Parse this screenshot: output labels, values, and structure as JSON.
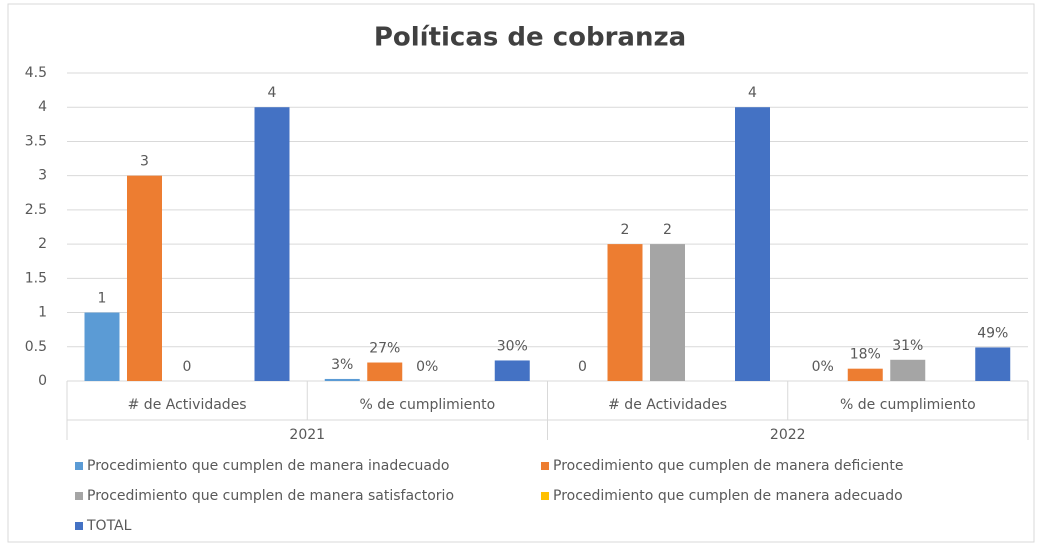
{
  "chart_data": {
    "type": "bar",
    "title": "Políticas de cobranza",
    "categories": [
      "# de Actividades",
      "% de cumplimiento",
      "# de Actividades",
      "% de cumplimiento"
    ],
    "category_groups": [
      "2021",
      "2022"
    ],
    "series": [
      {
        "name": "Procedimiento que cumplen de  manera inadecuado",
        "color": "#5b9bd5",
        "values": [
          1,
          0.03,
          0,
          0
        ],
        "value_labels": [
          "1",
          "3%",
          "0",
          "0%"
        ]
      },
      {
        "name": "Procedimiento que cumplen de  manera deficiente",
        "color": "#ed7d31",
        "values": [
          3,
          0.27,
          2,
          0.18
        ],
        "value_labels": [
          "3",
          "27%",
          "2",
          "18%"
        ]
      },
      {
        "name": "Procedimiento que cumplen de manera satisfactorio",
        "color": "#a5a5a5",
        "values": [
          0,
          0,
          2,
          0.31
        ],
        "value_labels": [
          "0",
          "0%",
          "2",
          "31%"
        ]
      },
      {
        "name": "Procedimiento que cumplen de  manera adecuado",
        "color": "#ffc000",
        "values": [
          null,
          null,
          null,
          null
        ],
        "value_labels": [
          null,
          null,
          null,
          null
        ]
      },
      {
        "name": "TOTAL",
        "color": "#4472c4",
        "values": [
          4,
          0.3,
          4,
          0.49
        ],
        "value_labels": [
          "4",
          "30%",
          "4",
          "49%"
        ]
      }
    ],
    "ylim": [
      0,
      4.5
    ],
    "yticks": [
      0,
      0.5,
      1,
      1.5,
      2,
      2.5,
      3,
      3.5,
      4,
      4.5
    ],
    "grid": true
  }
}
